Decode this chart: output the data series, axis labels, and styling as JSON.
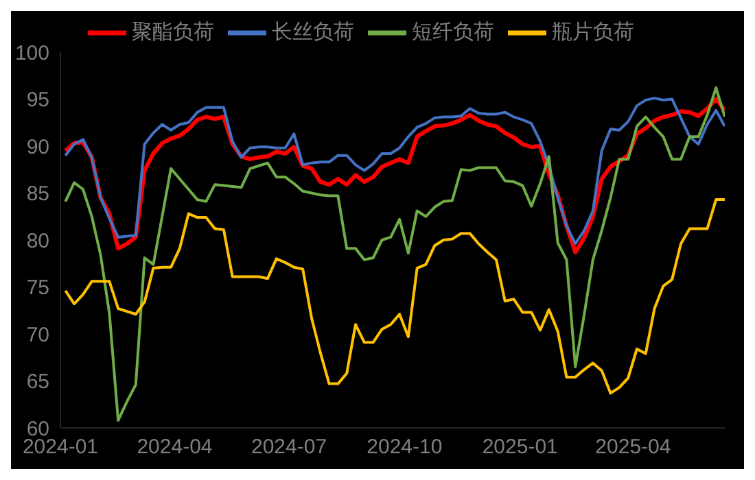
{
  "chart_data": {
    "type": "line",
    "legend": "top",
    "grid": false,
    "marker": "none",
    "line_style": "solid",
    "x": [
      "2024-01-05",
      "2024-01-12",
      "2024-01-19",
      "2024-01-26",
      "2024-02-02",
      "2024-02-09",
      "2024-02-16",
      "2024-02-23",
      "2024-03-01",
      "2024-03-08",
      "2024-03-15",
      "2024-03-22",
      "2024-03-29",
      "2024-04-05",
      "2024-04-12",
      "2024-04-19",
      "2024-04-26",
      "2024-05-03",
      "2024-05-10",
      "2024-05-17",
      "2024-05-24",
      "2024-05-31",
      "2024-06-07",
      "2024-06-14",
      "2024-06-21",
      "2024-06-28",
      "2024-07-05",
      "2024-07-12",
      "2024-07-19",
      "2024-07-26",
      "2024-08-02",
      "2024-08-09",
      "2024-08-16",
      "2024-08-23",
      "2024-08-30",
      "2024-09-06",
      "2024-09-13",
      "2024-09-20",
      "2024-09-27",
      "2024-10-04",
      "2024-10-11",
      "2024-10-18",
      "2024-10-25",
      "2024-11-01",
      "2024-11-08",
      "2024-11-15",
      "2024-11-22",
      "2024-11-29",
      "2024-12-06",
      "2024-12-13",
      "2024-12-20",
      "2024-12-27",
      "2025-01-03",
      "2025-01-10",
      "2025-01-17",
      "2025-01-24",
      "2025-01-31",
      "2025-02-07",
      "2025-02-14",
      "2025-02-21",
      "2025-02-28",
      "2025-03-07",
      "2025-03-14",
      "2025-03-21",
      "2025-03-28",
      "2025-04-04",
      "2025-04-11",
      "2025-04-18",
      "2025-04-25",
      "2025-05-02",
      "2025-05-09",
      "2025-05-16",
      "2025-05-23",
      "2025-05-30",
      "2025-06-06",
      "2025-06-13"
    ],
    "xlim": [
      "2024-01-01",
      "2025-06-13"
    ],
    "xticks": [
      "2024-01",
      "2024-04",
      "2024-07",
      "2024-10",
      "2025-01",
      "2025-04"
    ],
    "ylim": [
      60,
      100
    ],
    "yticks": [
      60,
      65,
      70,
      75,
      80,
      85,
      90,
      95,
      100
    ],
    "series": [
      {
        "name": "聚酯负荷",
        "color": "#ff0000",
        "values": [
          89.5,
          90.3,
          90.4,
          88.8,
          84.5,
          82.8,
          79.1,
          79.6,
          80.3,
          87.4,
          89.2,
          90.3,
          90.8,
          91.1,
          91.8,
          92.8,
          93.1,
          92.9,
          93.1,
          90.2,
          88.9,
          88.6,
          88.8,
          88.9,
          89.4,
          89.2,
          89.9,
          87.9,
          87.6,
          86.2,
          85.9,
          86.5,
          85.9,
          86.9,
          86.2,
          86.7,
          87.8,
          88.2,
          88.6,
          88.2,
          91.0,
          91.6,
          92.1,
          92.2,
          92.4,
          92.8,
          93.3,
          92.7,
          92.3,
          92.1,
          91.4,
          90.9,
          90.2,
          89.9,
          90.0,
          87.0,
          84.8,
          81.5,
          78.7,
          80.2,
          82.5,
          86.5,
          87.8,
          88.4,
          89.0,
          91.3,
          91.9,
          92.7,
          93.1,
          93.3,
          93.7,
          93.6,
          93.2,
          94.0,
          95.0,
          93.8
        ]
      },
      {
        "name": "长丝负荷",
        "color": "#4472c4",
        "values": [
          89.0,
          90.2,
          90.7,
          88.8,
          84.5,
          82.3,
          80.3,
          80.4,
          80.5,
          90.2,
          91.4,
          92.3,
          91.7,
          92.3,
          92.5,
          93.6,
          94.1,
          94.1,
          94.1,
          90.5,
          88.8,
          89.8,
          89.9,
          89.9,
          89.8,
          89.8,
          91.3,
          88.0,
          88.2,
          88.3,
          88.3,
          89.0,
          89.0,
          88.0,
          87.4,
          88.1,
          89.2,
          89.2,
          89.8,
          91.0,
          92.0,
          92.4,
          93.0,
          93.1,
          93.1,
          93.2,
          94.0,
          93.5,
          93.4,
          93.4,
          93.6,
          93.1,
          92.8,
          92.4,
          90.5,
          87.9,
          84.5,
          81.5,
          79.6,
          81.0,
          83.1,
          89.5,
          91.8,
          91.7,
          92.6,
          94.3,
          94.9,
          95.1,
          94.9,
          95.0,
          93.0,
          91.0,
          90.2,
          92.3,
          93.8,
          92.1
        ]
      },
      {
        "name": "短纤负荷",
        "color": "#70ad47",
        "values": [
          84.1,
          86.1,
          85.4,
          82.5,
          78.4,
          72.2,
          60.8,
          62.8,
          64.6,
          78.1,
          77.4,
          82.5,
          87.6,
          86.5,
          85.4,
          84.3,
          84.1,
          85.9,
          85.8,
          85.7,
          85.6,
          87.6,
          87.9,
          88.2,
          86.7,
          86.7,
          86.0,
          85.2,
          85.0,
          84.8,
          84.7,
          84.7,
          79.1,
          79.1,
          77.9,
          78.1,
          80.0,
          80.3,
          82.2,
          78.6,
          83.1,
          82.5,
          83.5,
          84.1,
          84.2,
          87.5,
          87.4,
          87.7,
          87.7,
          87.7,
          86.3,
          86.2,
          85.8,
          83.6,
          86.0,
          88.9,
          79.7,
          77.9,
          66.5,
          72.0,
          77.9,
          81.0,
          84.5,
          88.6,
          88.6,
          92.1,
          93.1,
          92.0,
          91.0,
          88.6,
          88.6,
          91.0,
          91.0,
          93.3,
          96.2,
          93.1
        ]
      },
      {
        "name": "瓶片负荷",
        "color": "#ffc000",
        "values": [
          74.6,
          73.2,
          74.2,
          75.6,
          75.6,
          75.6,
          72.7,
          72.4,
          72.1,
          73.4,
          77.0,
          77.1,
          77.1,
          79.1,
          82.8,
          82.4,
          82.4,
          81.2,
          81.1,
          76.1,
          76.1,
          76.1,
          76.1,
          75.9,
          78.0,
          77.6,
          77.1,
          76.9,
          71.7,
          68.0,
          64.7,
          64.7,
          65.8,
          71.0,
          69.1,
          69.1,
          70.5,
          71.0,
          72.1,
          69.7,
          77.0,
          77.4,
          79.4,
          80.0,
          80.1,
          80.7,
          80.7,
          79.6,
          78.7,
          77.9,
          73.5,
          73.7,
          72.3,
          72.3,
          70.4,
          72.6,
          70.3,
          65.4,
          65.4,
          66.2,
          66.9,
          66.1,
          63.7,
          64.3,
          65.3,
          68.4,
          67.9,
          72.7,
          75.1,
          75.8,
          79.6,
          81.2,
          81.2,
          81.2,
          84.3,
          84.3
        ]
      }
    ]
  }
}
